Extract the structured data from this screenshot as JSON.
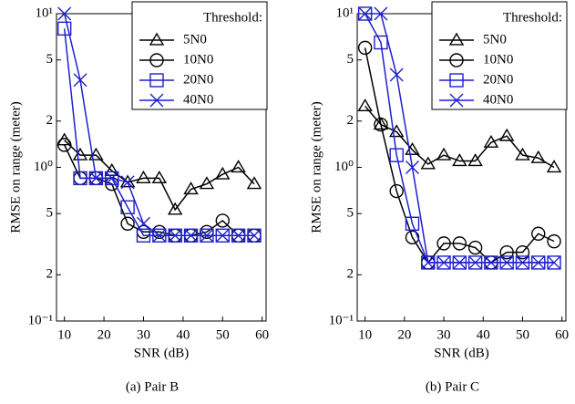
{
  "chart_data": [
    {
      "type": "line",
      "caption": "(a) Pair B",
      "xlabel": "SNR (dB)",
      "ylabel": "RMSE on range (meter)",
      "legend_title": "Threshold:",
      "legend": "upper right",
      "log_y": true,
      "x": [
        10,
        14,
        18,
        22,
        26,
        30,
        34,
        38,
        42,
        46,
        50,
        54,
        58
      ],
      "xlim": [
        8,
        61
      ],
      "xticks": [
        10,
        20,
        30,
        40,
        50,
        60
      ],
      "ylim": [
        0.1,
        10
      ],
      "yticks": [
        {
          "value": 0.1,
          "label": "10⁻¹"
        },
        {
          "value": 0.2,
          "label": "2"
        },
        {
          "value": 0.5,
          "label": "5"
        },
        {
          "value": 1,
          "label": "10⁰"
        },
        2,
        5,
        {
          "value": 10,
          "label": "10¹"
        }
      ],
      "series": [
        {
          "name": "5N0",
          "color": "#000000",
          "marker": "triangle",
          "values": [
            1.5,
            1.2,
            1.2,
            0.95,
            0.8,
            0.85,
            0.85,
            0.53,
            0.72,
            0.78,
            0.9,
            1.0,
            0.78
          ]
        },
        {
          "name": "10N0",
          "color": "#000000",
          "marker": "circle",
          "values": [
            1.4,
            0.85,
            0.85,
            0.78,
            0.43,
            0.38,
            0.38,
            0.36,
            0.36,
            0.38,
            0.45,
            0.36,
            0.36
          ]
        },
        {
          "name": "20N0",
          "color": "#1f1fd0",
          "marker": "square",
          "values": [
            8,
            0.85,
            0.85,
            0.85,
            0.55,
            0.36,
            0.36,
            0.36,
            0.36,
            0.36,
            0.36,
            0.36,
            0.36
          ]
        },
        {
          "name": "40N0",
          "color": "#1f1fd0",
          "marker": "x",
          "values": [
            10,
            3.7,
            0.85,
            0.85,
            0.8,
            0.43,
            0.36,
            0.36,
            0.36,
            0.36,
            0.36,
            0.36,
            0.36
          ]
        }
      ]
    },
    {
      "type": "line",
      "caption": "(b) Pair C",
      "xlabel": "SNR (dB)",
      "ylabel": "RMSE on range (meter)",
      "legend_title": "Threshold:",
      "legend": "upper right",
      "log_y": true,
      "x": [
        10,
        14,
        18,
        22,
        26,
        30,
        34,
        38,
        42,
        46,
        50,
        54,
        58
      ],
      "xlim": [
        8,
        61
      ],
      "xticks": [
        10,
        20,
        30,
        40,
        50,
        60
      ],
      "ylim": [
        0.1,
        10
      ],
      "yticks": [
        {
          "value": 0.1,
          "label": "10⁻¹"
        },
        {
          "value": 0.2,
          "label": "2"
        },
        {
          "value": 0.5,
          "label": "5"
        },
        {
          "value": 1,
          "label": "10⁰"
        },
        2,
        5,
        {
          "value": 10,
          "label": "10¹"
        }
      ],
      "series": [
        {
          "name": "5N0",
          "color": "#000000",
          "marker": "triangle",
          "values": [
            2.5,
            1.9,
            1.7,
            1.3,
            1.05,
            1.2,
            1.1,
            1.1,
            1.45,
            1.6,
            1.2,
            1.15,
            1.0
          ]
        },
        {
          "name": "10N0",
          "color": "#000000",
          "marker": "circle",
          "values": [
            6,
            1.9,
            0.7,
            0.35,
            0.24,
            0.32,
            0.32,
            0.3,
            0.24,
            0.28,
            0.28,
            0.37,
            0.33
          ]
        },
        {
          "name": "20N0",
          "color": "#1f1fd0",
          "marker": "square",
          "values": [
            10,
            6.5,
            1.2,
            0.43,
            0.24,
            0.24,
            0.24,
            0.24,
            0.24,
            0.24,
            0.24,
            0.24,
            0.24
          ]
        },
        {
          "name": "40N0",
          "color": "#1f1fd0",
          "marker": "x",
          "values": [
            10,
            10,
            4,
            1.0,
            0.24,
            0.24,
            0.24,
            0.24,
            0.24,
            0.24,
            0.24,
            0.24,
            0.24
          ]
        }
      ]
    }
  ]
}
